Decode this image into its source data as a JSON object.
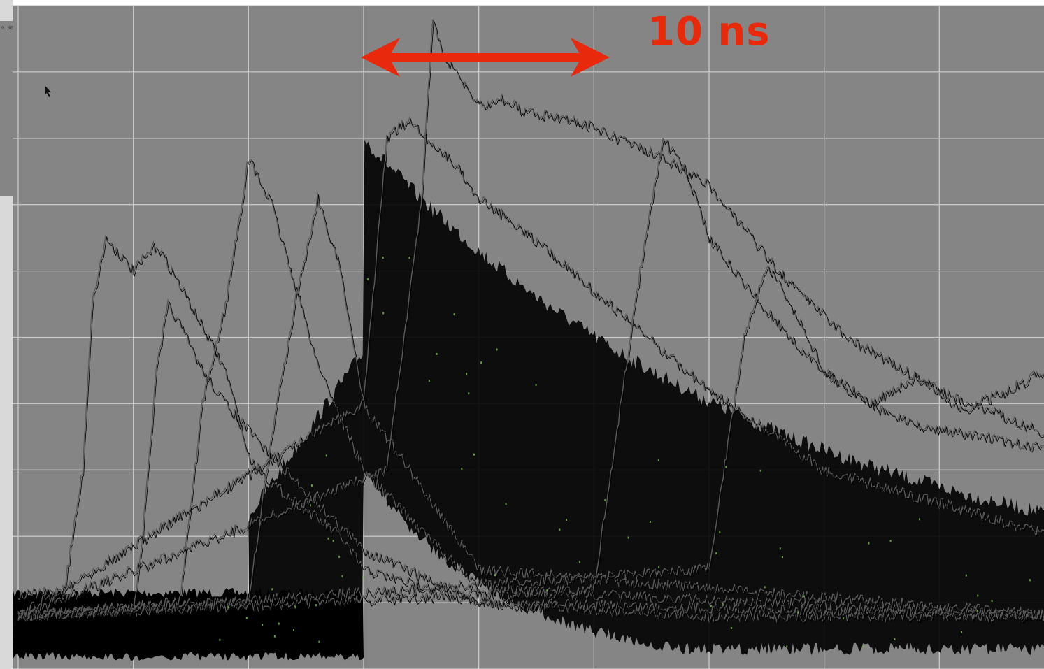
{
  "window": {
    "inset_text": "0.004"
  },
  "annotation": {
    "scale_label": "10 ns",
    "arrow_color": "#e8290b"
  },
  "colors": {
    "screen_background": "#858585",
    "grid": "#c7c7c7",
    "trace": "#000000",
    "trace_highlight": "#5a5a5a",
    "noise_speck": "#7cc24a",
    "left_strip": "#d9d9d9"
  },
  "chart_data": {
    "type": "line",
    "title": "",
    "xlabel": "",
    "ylabel": "",
    "grid": true,
    "x_unit": "ns",
    "grid_divisions_x": 9,
    "grid_divisions_y": 10,
    "xlim": [
      0,
      45
    ],
    "ylim": [
      0,
      10
    ],
    "baseline_level": 0.8,
    "trigger_time": 15,
    "annotation_span": [
      15,
      25.5
    ],
    "series": [
      {
        "x": [
          0,
          2,
          2.8,
          3.2,
          3.8,
          5,
          6,
          7,
          9,
          10,
          11,
          14,
          15,
          20,
          25,
          30,
          35,
          45
        ],
        "values": [
          1.1,
          1.2,
          3.0,
          5.5,
          6.5,
          6.0,
          6.4,
          5.8,
          4.5,
          3.2,
          2.8,
          2.0,
          1.5,
          1.0,
          0.9,
          0.8,
          0.8,
          0.8
        ]
      },
      {
        "x": [
          0,
          5,
          5.4,
          6,
          6.5,
          7,
          8,
          9,
          10,
          11,
          13,
          15,
          20,
          45
        ],
        "values": [
          0.8,
          0.9,
          2.0,
          4.5,
          5.5,
          5.2,
          4.5,
          4.0,
          3.6,
          3.2,
          2.5,
          1.8,
          1.0,
          0.8
        ]
      },
      {
        "x": [
          0,
          7,
          8,
          9,
          10,
          11,
          12,
          13,
          15,
          20,
          45
        ],
        "values": [
          0.8,
          1.0,
          4.0,
          5.5,
          7.7,
          7.0,
          5.8,
          4.6,
          3.0,
          1.2,
          0.8
        ]
      },
      {
        "x": [
          0,
          10,
          11,
          12,
          13,
          14,
          15,
          20,
          45
        ],
        "values": [
          0.8,
          1.0,
          3.5,
          5.5,
          7.1,
          6.0,
          4.0,
          1.5,
          0.8
        ]
      },
      {
        "x": [
          0,
          15,
          16,
          17,
          18,
          19,
          20,
          22,
          25,
          30,
          35,
          45
        ],
        "values": [
          0.8,
          4.0,
          8.0,
          8.3,
          7.9,
          7.6,
          7.1,
          6.6,
          5.7,
          4.2,
          3.0,
          2.0
        ]
      },
      {
        "x": [
          0,
          16,
          17.5,
          18,
          18.5,
          19,
          20,
          21,
          22,
          24,
          26,
          28,
          30,
          33,
          36,
          40,
          45
        ],
        "values": [
          0.8,
          3.0,
          7.0,
          9.8,
          9.2,
          9.0,
          8.5,
          8.6,
          8.4,
          8.3,
          8.0,
          7.7,
          7.3,
          6.0,
          5.0,
          4.2,
          3.5
        ]
      },
      {
        "x": [
          0,
          25,
          27,
          28,
          29,
          30,
          32,
          34,
          36,
          38,
          40,
          42,
          45
        ],
        "values": [
          0.8,
          1.2,
          6.0,
          8.0,
          7.5,
          6.5,
          5.6,
          4.8,
          4.2,
          3.8,
          3.6,
          3.5,
          3.3
        ]
      },
      {
        "x": [
          0,
          30,
          31.5,
          32.5,
          33.5,
          35,
          37,
          39,
          41,
          43,
          44.5,
          45
        ],
        "values": [
          0.8,
          1.5,
          5.0,
          6.1,
          5.5,
          4.5,
          4.0,
          4.4,
          3.9,
          4.2,
          4.5,
          4.0
        ]
      }
    ]
  }
}
